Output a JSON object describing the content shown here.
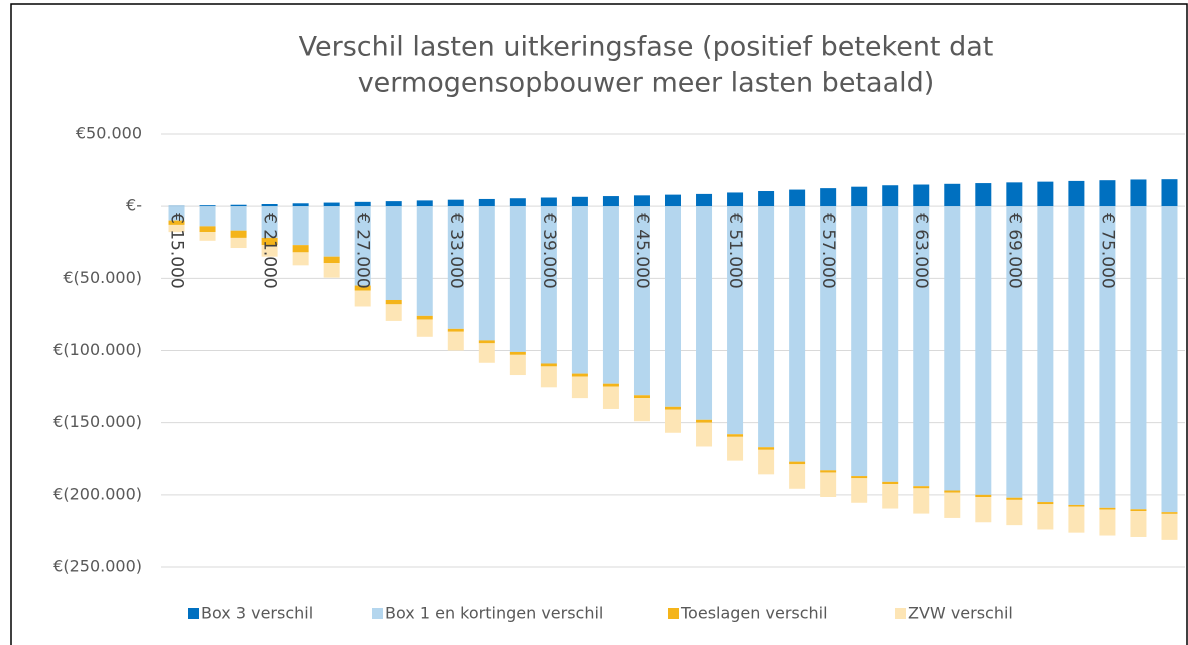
{
  "chart_data": {
    "type": "bar",
    "stacked": true,
    "title": [
      "Verschil lasten uitkeringsfase (positief betekent dat",
      "vermogensopbouwer meer lasten betaald)"
    ],
    "categories": [
      "€ 15.000",
      null,
      null,
      "€ 21.000",
      null,
      null,
      "€ 27.000",
      null,
      null,
      "€ 33.000",
      null,
      null,
      "€ 39.000",
      null,
      null,
      "€ 45.000",
      null,
      null,
      "€ 51.000",
      null,
      null,
      "€ 57.000",
      null,
      null,
      "€ 63.000",
      null,
      null,
      "€ 69.000",
      null,
      null,
      "€ 75.000",
      null,
      null
    ],
    "series": [
      {
        "name": "Box 3 verschil",
        "color": "#0070c0",
        "values": [
          300,
          700,
          1000,
          1500,
          2000,
          2500,
          3000,
          3500,
          4000,
          4500,
          5000,
          5500,
          6000,
          6500,
          7000,
          7500,
          8000,
          8500,
          9500,
          10500,
          11500,
          12500,
          13500,
          14500,
          15000,
          15500,
          16000,
          16500,
          17000,
          17500,
          18000,
          18500,
          18700
        ]
      },
      {
        "name": "Box 1 en kortingen verschil",
        "color": "#b4d6ee",
        "values": [
          -10000,
          -14000,
          -17000,
          -22000,
          -27000,
          -35000,
          -55000,
          -65000,
          -76000,
          -85000,
          -93000,
          -101000,
          -109000,
          -116000,
          -123000,
          -131000,
          -139000,
          -148000,
          -158000,
          -167000,
          -177000,
          -183000,
          -187000,
          -191000,
          -194000,
          -197000,
          -200000,
          -202000,
          -205000,
          -207000,
          -209000,
          -210000,
          -212000
        ]
      },
      {
        "name": "Toeslagen verschil",
        "color": "#f4b41a",
        "values": [
          -3000,
          -4000,
          -5000,
          -5000,
          -5000,
          -4500,
          -3500,
          -3000,
          -2500,
          -2000,
          -2000,
          -2000,
          -2000,
          -2000,
          -2000,
          -2000,
          -2000,
          -2000,
          -1800,
          -1800,
          -1800,
          -1500,
          -1500,
          -1500,
          -1500,
          -1500,
          -1500,
          -1500,
          -1500,
          -1200,
          -1200,
          -1200,
          -1200
        ]
      },
      {
        "name": "ZVW verschil",
        "color": "#fde5b5",
        "values": [
          -5000,
          -6000,
          -7000,
          -8000,
          -9000,
          -10000,
          -11000,
          -11500,
          -12000,
          -13000,
          -13500,
          -14000,
          -14500,
          -15000,
          -15500,
          -16000,
          -16000,
          -16500,
          -16500,
          -17000,
          -17000,
          -17000,
          -17000,
          -17000,
          -17500,
          -17500,
          -17500,
          -17500,
          -17500,
          -18000,
          -18000,
          -18000,
          -18000
        ]
      }
    ],
    "ylim": [
      -250000,
      50000
    ],
    "yticks": [
      {
        "value": -250000,
        "label": "€(250.000)"
      },
      {
        "value": -200000,
        "label": "€(200.000)"
      },
      {
        "value": -150000,
        "label": "€(150.000)"
      },
      {
        "value": -100000,
        "label": "€(100.000)"
      },
      {
        "value": -50000,
        "label": "€(50.000)"
      },
      {
        "value": 0,
        "label": "€-"
      },
      {
        "value": 50000,
        "label": "€50.000"
      }
    ],
    "grid": true,
    "legend": "bottom"
  }
}
